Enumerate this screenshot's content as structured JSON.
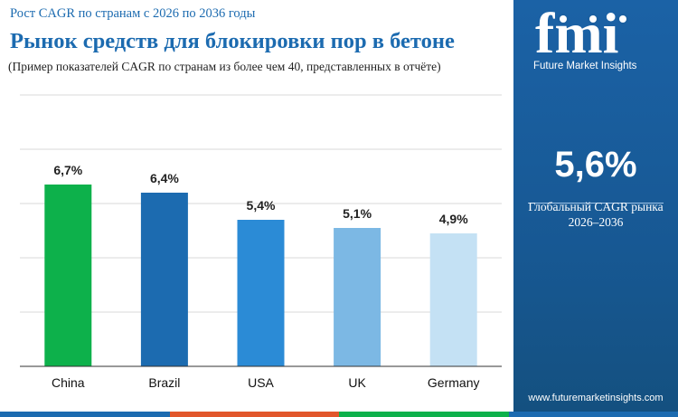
{
  "header": {
    "subtitle": "Рост CAGR по странам с 2026 по 2036 годы",
    "title": "Рынок средств для блокировки пор в бетоне",
    "note": "(Пример показателей CAGR по странам из более чем 40, представленных в отчёте)"
  },
  "chart_data": {
    "type": "bar",
    "categories": [
      "China",
      "Brazil",
      "USA",
      "UK",
      "Germany"
    ],
    "values": [
      6.7,
      6.4,
      5.4,
      5.1,
      4.9
    ],
    "labels": [
      "6,7%",
      "6,4%",
      "5,4%",
      "5,1%",
      "4,9%"
    ],
    "colors": [
      "#0db14b",
      "#1c6bb0",
      "#2b8bd6",
      "#7cb8e4",
      "#c4e1f4"
    ],
    "ylim": [
      0,
      10
    ],
    "grid": true,
    "title": "",
    "xlabel": "",
    "ylabel": ""
  },
  "sidebar": {
    "logo_text": "fmi",
    "logo_caption": "Future Market Insights",
    "global_value": "5,6%",
    "global_label": "Глобальный CAGR рынка",
    "global_period": "2026–2036",
    "website": "www.futuremarketinsights.com"
  },
  "colors": {
    "brand_blue": "#1c6bb0",
    "panel_blue": "#1a5fa0",
    "strip": [
      "#1c6bb0",
      "#e2562b",
      "#0db14b",
      "#1c6bb0"
    ]
  }
}
